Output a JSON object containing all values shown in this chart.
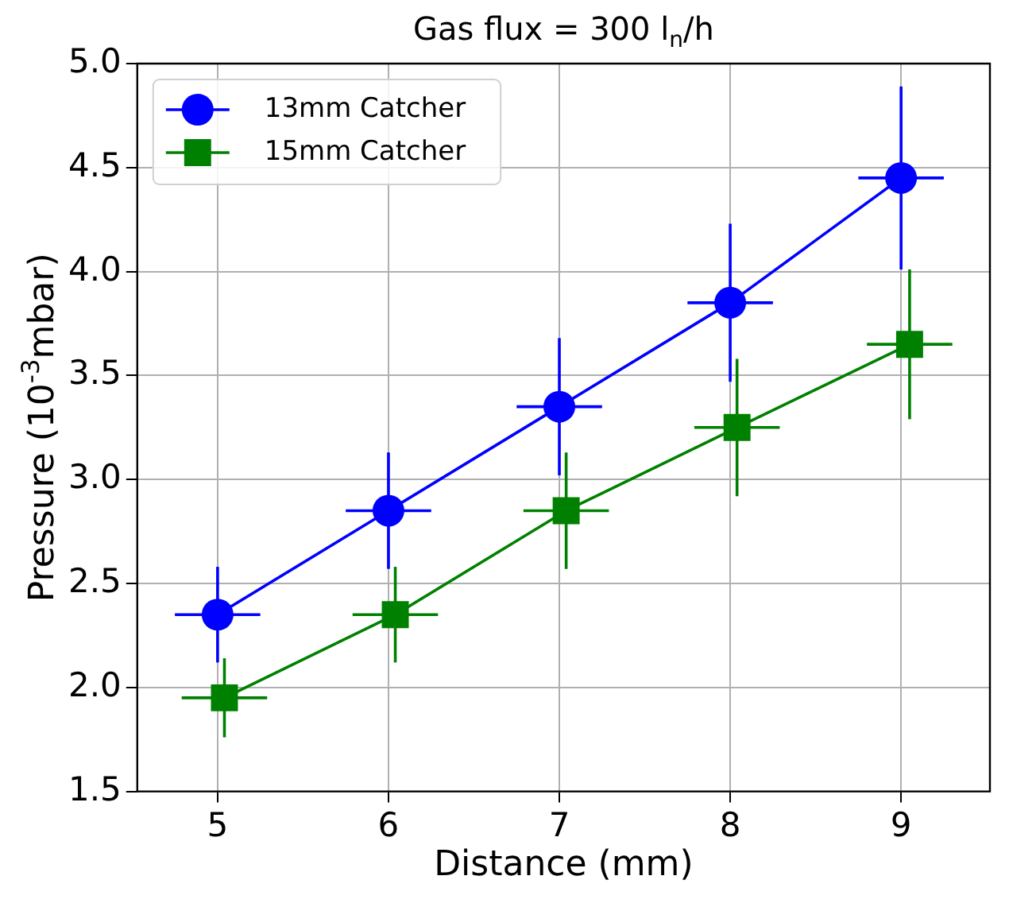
{
  "chart_data": {
    "type": "line",
    "title": "Gas flux = 300 l$_{n}$/h",
    "xlabel": "Distance (mm)",
    "ylabel": "Pressure (10$^{-3}$mbar)",
    "xlim": [
      4.53,
      9.52
    ],
    "xticks": [
      5,
      6,
      7,
      8,
      9
    ],
    "ylim": [
      1.5,
      5.0
    ],
    "yticks": [
      1.5,
      {
        "value": 2,
        "label": "2.0"
      },
      2.5,
      {
        "value": 3,
        "label": "3.0"
      },
      3.5,
      {
        "value": 4,
        "label": "4.0"
      },
      4.5,
      {
        "value": 5,
        "label": "5.0"
      }
    ],
    "grid": true,
    "legend": "top left",
    "line_style": "solid",
    "series": [
      {
        "name": "13mm Catcher",
        "color": "#0000ff",
        "marker": "circle",
        "x": [
          5,
          6,
          7,
          8,
          9
        ],
        "values": [
          2.35,
          2.85,
          3.35,
          3.85,
          4.45
        ],
        "errors": [
          0.23,
          0.28,
          0.33,
          0.38,
          0.44
        ],
        "xerrors": [
          0.25,
          0.25,
          0.25,
          0.25,
          0.25
        ]
      },
      {
        "name": "15mm Catcher",
        "color": "#008000",
        "marker": "square",
        "x": [
          5.04,
          6.04,
          7.04,
          8.04,
          9.05
        ],
        "values": [
          1.95,
          2.35,
          2.85,
          3.25,
          3.65
        ],
        "errors": [
          0.19,
          0.23,
          0.28,
          0.33,
          0.36
        ],
        "xerrors": [
          0.25,
          0.25,
          0.25,
          0.25,
          0.25
        ]
      }
    ]
  }
}
